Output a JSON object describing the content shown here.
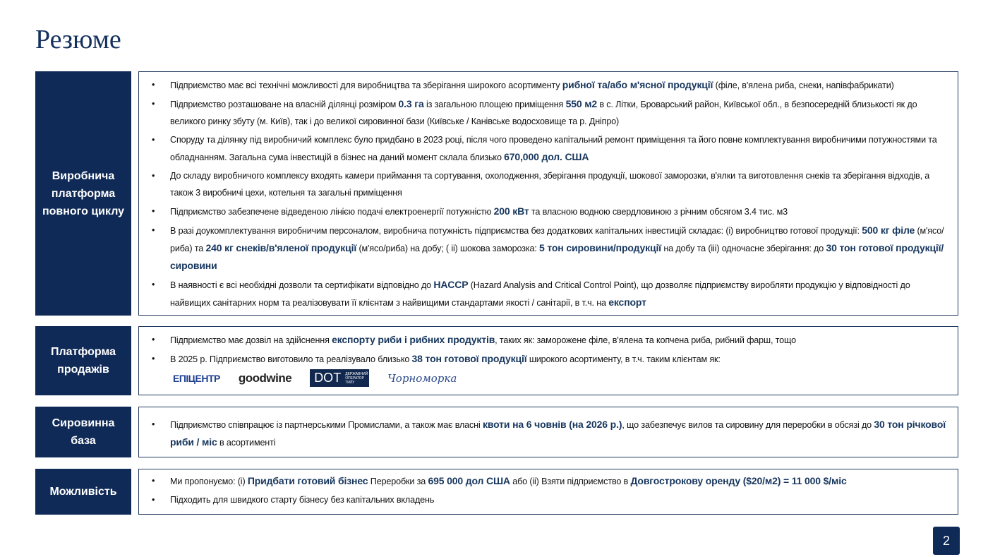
{
  "title": "Резюме",
  "page_number": "2",
  "sections": [
    {
      "label": "Виробнича платформа повного циклу",
      "bullets": [
        [
          {
            "t": "Підприємство має всі технічні можливості для виробництва та зберігання широкого асортименту "
          },
          {
            "t": "рибної та/або м'ясної продукції",
            "b": 1
          },
          {
            "t": " (філе, в'ялена риба, снеки, напівфабрикати)"
          }
        ],
        [
          {
            "t": "Підприємство розташоване на власній ділянці розміром "
          },
          {
            "t": "0.3 га",
            "b": 1
          },
          {
            "t": " із загальною площею приміщення "
          },
          {
            "t": "550 м2",
            "b": 1
          },
          {
            "t": " в с. Літки, Броварський район, Київської обл., в безпосередній близькості як до великого ринку збуту (м. Київ), так і до великої сировинної бази (Київське / Канівське водосховище та р. Дніпро)"
          }
        ],
        [
          {
            "t": "Споруду та ділянку під виробничий комплекс було придбано в 2023 році, після чого проведено капітальний ремонт приміщення та його повне комплектування виробничими потужностями та обладнанням. Загальна сума інвестицій в бізнес на даний момент склала близько "
          },
          {
            "t": "670,000 дол. США",
            "b": 1
          }
        ],
        [
          {
            "t": "До складу виробничого комплексу входять камери приймання та сортування, охолодження, зберігання продукції, шокової заморозки, в'ялки та виготовлення снеків та зберігання відходів, а також 3 виробничі цехи, котельня та загальні приміщення"
          }
        ],
        [
          {
            "t": "Підприємство забезпечене відведеною лінією подачі електроенергії потужністю "
          },
          {
            "t": "200 кВт",
            "b": 1
          },
          {
            "t": " та власною водною свердловиною з річним обсягом 3.4 тис. м3"
          }
        ],
        [
          {
            "t": "В разі доукомплектування виробничим персоналом, виробнича потужність підприємства без додаткових капітальних інвестицій складає: (і) виробництво готової продукції: "
          },
          {
            "t": "500 кг філе",
            "b": 1
          },
          {
            "t": " (м'ясо/риба) та "
          },
          {
            "t": "240 кг снеків/в'яленої продукції",
            "b": 1
          },
          {
            "t": " (м'ясо/риба) на добу; ( іі) шокова заморозка: "
          },
          {
            "t": "5 тон сировини/продукції",
            "b": 1
          },
          {
            "t": " на добу та (ііі) одночасне зберігання: до "
          },
          {
            "t": "30 тон готової продукції/сировини",
            "b": 1
          }
        ],
        [
          {
            "t": "В наявності є всі необхідні дозволи та сертифікати відповідно до "
          },
          {
            "t": "HACCP",
            "b": 1
          },
          {
            "t": " (Hazard Analysis and Critical Control Point), що дозволяє підприємству виробляти продукцію у відповідності до найвищих санітарних норм та реалізовувати її клієнтам з найвищими стандартами якості / санітарії, в т.ч. на "
          },
          {
            "t": "експорт",
            "b": 1
          }
        ]
      ]
    },
    {
      "label": "Платформа продажів",
      "bullets": [
        [
          {
            "t": "Підприємство має дозвіл на здійснення "
          },
          {
            "t": "експорту риби і рибних продуктів",
            "b": 1
          },
          {
            "t": ", таких як: заморожене філе, в'ялена та копчена риба, рибний фарш, тощо"
          }
        ],
        [
          {
            "t": "В 2025 р. Підприємство виготовило та реалізувало близько "
          },
          {
            "t": "38 тон готової продукції",
            "b": 1
          },
          {
            "t": " широкого асортименту, в т.ч. таким клієнтам як:"
          }
        ]
      ],
      "logos": {
        "epicentr": "ЕПІЦЕНТР",
        "goodwine": "goodwine",
        "dot": "DOT",
        "dot_sub": "ДЕРЖАВНИЙ ОПЕРАТОР ТИЛУ",
        "chornomorka": "Чорноморка"
      }
    },
    {
      "label": "Сировинна база",
      "bullets": [
        [
          {
            "t": "Підприємство співпрацює із партнерськими Промислами, а також має власні "
          },
          {
            "t": "квоти на 6 човнів (на 2026 р.)",
            "b": 1
          },
          {
            "t": ", що забезпечує вилов та сировину для переробки в обсязі до "
          },
          {
            "t": "30 тон річкової риби / міс",
            "b": 1
          },
          {
            "t": " в асортименті"
          }
        ]
      ]
    },
    {
      "label": "Можливість",
      "bullets": [
        [
          {
            "t": "Ми пропонуємо: (і) "
          },
          {
            "t": "Придбати готовий бізнес",
            "b": 1
          },
          {
            "t": " Переробки за "
          },
          {
            "t": "695 000 дол США",
            "b": 1
          },
          {
            "t": " або (іі) Взяти підприємство в "
          },
          {
            "t": "Довгострокову оренду ($20/м2) = 11 000 $/міс",
            "b": 1
          }
        ],
        [
          {
            "t": "Підходить для швидкого старту бізнесу без капітальних вкладень"
          }
        ]
      ]
    }
  ]
}
